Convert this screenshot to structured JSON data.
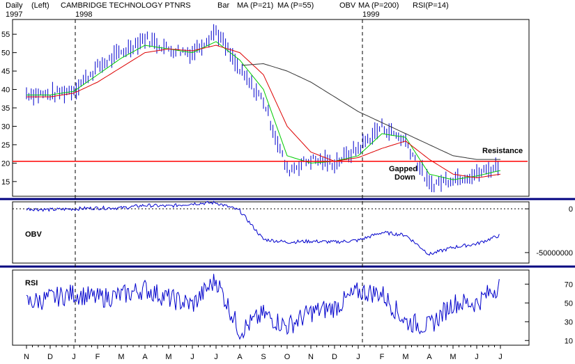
{
  "header": {
    "period": "Daily",
    "scale": "(Left)",
    "title": "CAMBRIDGE TECHNOLOGY PTNRS",
    "year_start": "1997",
    "year_1998": "1998",
    "year_1999": "1999",
    "legend": [
      {
        "label": "Bar",
        "color": "#0000cc"
      },
      {
        "label": "MA (P=21)",
        "color": "#00bb00"
      },
      {
        "label": "MA (P=55)",
        "color": "#dd0000"
      },
      {
        "label": "OBV",
        "color": "#0000cc"
      },
      {
        "label": "MA (P=200)",
        "color": "#0000cc"
      },
      {
        "label": "RSI(P=14)",
        "color": "#0000cc"
      }
    ]
  },
  "annotations": {
    "resistance": "Resistance",
    "gapped1": "Gapped",
    "gapped2": "Down"
  },
  "colors": {
    "bars": "#0000cc",
    "ma21": "#00cc00",
    "ma55": "#dd0000",
    "ma200": "#333333",
    "resistance": "#ff0000",
    "divider": "#000080",
    "indicator": "#0000cc"
  },
  "chart_data": [
    {
      "type": "bar",
      "panel": "price",
      "x_labels": [
        "N",
        "D",
        "J",
        "F",
        "M",
        "A",
        "M",
        "J",
        "J",
        "A",
        "S",
        "O",
        "N",
        "D",
        "J",
        "F",
        "M",
        "A",
        "M",
        "J",
        "J"
      ],
      "ylim": [
        11,
        59
      ],
      "yticks": [
        15,
        20,
        25,
        30,
        35,
        40,
        45,
        50,
        55
      ],
      "resistance_level": 20.5,
      "year_markers": [
        "1998",
        "1999"
      ],
      "series": [
        {
          "name": "Bar",
          "monthly_values": [
            39,
            38.5,
            40,
            46,
            50,
            54,
            51,
            50,
            56,
            45,
            37,
            18,
            21,
            20,
            24,
            30,
            26,
            14,
            16,
            17,
            19.5
          ]
        },
        {
          "name": "MA (P=21)",
          "monthly_values": [
            38.5,
            38.5,
            39.5,
            44,
            48.5,
            52,
            51,
            50,
            53,
            48,
            40,
            22,
            20,
            20.5,
            22,
            28,
            27,
            17,
            15.5,
            16.5,
            18
          ]
        },
        {
          "name": "MA (P=55)",
          "monthly_values": [
            38,
            38,
            39,
            42,
            46,
            50,
            51,
            50.5,
            52,
            50,
            44,
            30,
            23,
            20.5,
            21.5,
            24,
            26,
            21,
            17,
            16,
            17
          ]
        },
        {
          "name": "MA (P=200)",
          "monthly_values": [
            null,
            null,
            null,
            null,
            null,
            null,
            null,
            null,
            null,
            46.5,
            47,
            45,
            42,
            38,
            34,
            31,
            28,
            25,
            22,
            21,
            21
          ]
        }
      ]
    },
    {
      "type": "line",
      "panel": "obv",
      "label": "OBV",
      "yticks": [
        0,
        -50000000
      ],
      "ytick_labels": [
        "0",
        "-50000000"
      ],
      "ylim": [
        -62000000,
        8000000
      ],
      "monthly_values": [
        0,
        -1000000,
        0,
        1000000,
        1000000,
        4000000,
        3000000,
        6000000,
        7000000,
        -2000000,
        -35000000,
        -38000000,
        -37000000,
        -38000000,
        -36000000,
        -27000000,
        -30000000,
        -52000000,
        -44000000,
        -40000000,
        -30000000
      ]
    },
    {
      "type": "line",
      "panel": "rsi",
      "label": "RSI",
      "yticks": [
        10,
        30,
        50,
        70
      ],
      "ylim": [
        5,
        85
      ],
      "monthly_values": [
        50,
        55,
        60,
        55,
        58,
        65,
        55,
        48,
        75,
        20,
        38,
        25,
        40,
        45,
        62,
        60,
        30,
        25,
        50,
        50,
        70
      ]
    }
  ]
}
